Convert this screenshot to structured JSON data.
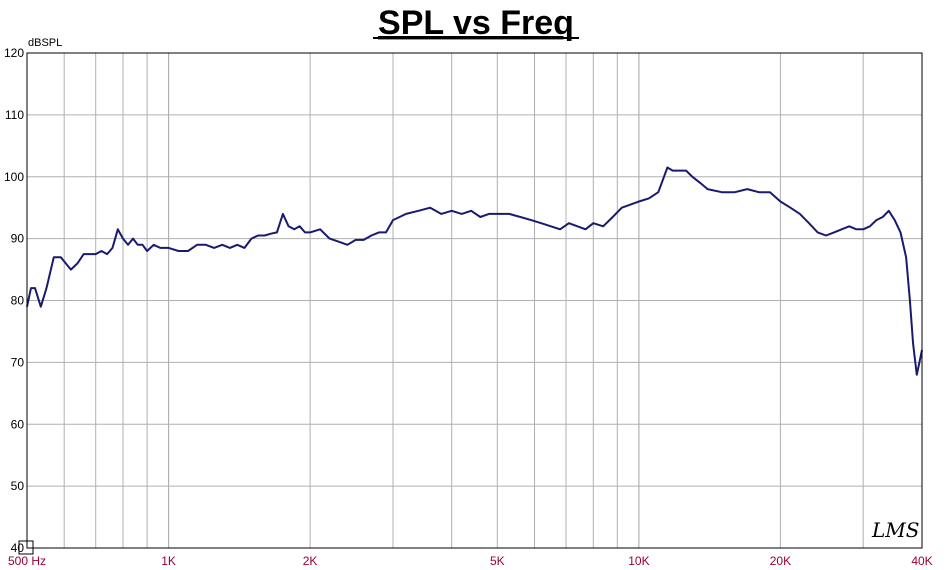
{
  "chart_data": {
    "type": "line",
    "title": "SPL vs Freq",
    "ylabel": "dBSPL",
    "xscale": "log",
    "xlim": [
      500,
      40000
    ],
    "ylim": [
      40,
      120
    ],
    "grid": true,
    "logo_text": "LMS",
    "colors": {
      "line": "#1a1a6e",
      "grid": "#b0b0b0",
      "xtick": "#990033",
      "ytick": "#000000"
    },
    "ytick_values": [
      40,
      50,
      60,
      70,
      80,
      90,
      100,
      110,
      120
    ],
    "ytick_labels": [
      "40",
      "50",
      "60",
      "70",
      "80",
      "90",
      "100",
      "110",
      "120"
    ],
    "xtick_values": [
      500,
      1000,
      2000,
      5000,
      10000,
      20000,
      40000
    ],
    "xtick_labels": [
      "500  Hz",
      "1K",
      "2K",
      "5K",
      "10K",
      "20K",
      "40K"
    ],
    "series": [
      {
        "x": [
          500,
          510,
          520,
          535,
          550,
          570,
          590,
          620,
          640,
          660,
          680,
          700,
          720,
          740,
          760,
          780,
          800,
          820,
          840,
          860,
          880,
          900,
          930,
          960,
          1000,
          1050,
          1100,
          1150,
          1200,
          1250,
          1300,
          1350,
          1400,
          1450,
          1500,
          1550,
          1600,
          1650,
          1700,
          1750,
          1800,
          1850,
          1900,
          1950,
          2000,
          2100,
          2200,
          2300,
          2400,
          2500,
          2600,
          2700,
          2800,
          2900,
          3000,
          3200,
          3400,
          3600,
          3800,
          4000,
          4200,
          4400,
          4600,
          4800,
          5000,
          5300,
          5600,
          5900,
          6200,
          6500,
          6800,
          7100,
          7400,
          7700,
          8000,
          8400,
          8800,
          9200,
          9600,
          10000,
          10500,
          11000,
          11500,
          11800,
          12200,
          12600,
          13000,
          13500,
          14000,
          15000,
          16000,
          17000,
          18000,
          19000,
          20000,
          21000,
          22000,
          23000,
          24000,
          25000,
          26000,
          27000,
          28000,
          29000,
          30000,
          31000,
          32000,
          33000,
          34000,
          35000,
          36000,
          37000,
          37700,
          38300,
          39000,
          40000
        ],
        "y": [
          79,
          82,
          82,
          79,
          82,
          87,
          87,
          85,
          86,
          87.5,
          87.5,
          87.5,
          88,
          87.5,
          88.5,
          91.5,
          90,
          89,
          90,
          89,
          89,
          88,
          89,
          88.5,
          88.5,
          88,
          88,
          89,
          89,
          88.5,
          89,
          88.5,
          89,
          88.5,
          90,
          90.5,
          90.5,
          90.8,
          91,
          94,
          92,
          91.5,
          92,
          91,
          91,
          91.5,
          90,
          89.5,
          89,
          89.8,
          89.8,
          90.5,
          91,
          91,
          93,
          94,
          94.5,
          95,
          94,
          94.5,
          94,
          94.5,
          93.5,
          94,
          94,
          94,
          93.5,
          93,
          92.5,
          92,
          91.5,
          92.5,
          92,
          91.5,
          92.5,
          92,
          93.5,
          95,
          95.5,
          96,
          96.5,
          97.5,
          101.5,
          101,
          101,
          101,
          100,
          99,
          98,
          97.5,
          97.5,
          98,
          97.5,
          97.5,
          96,
          95,
          94,
          92.5,
          91,
          90.5,
          91,
          91.5,
          92,
          91.5,
          91.5,
          92,
          93,
          93.5,
          94.5,
          93,
          91,
          87,
          80,
          73,
          68,
          72
        ]
      }
    ]
  }
}
